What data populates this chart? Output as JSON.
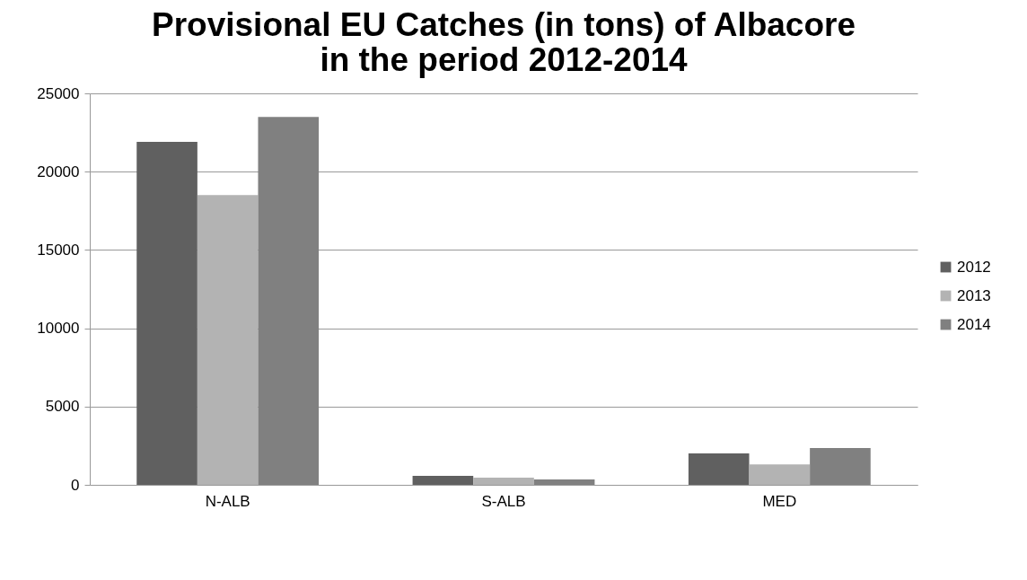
{
  "chart_data": {
    "type": "bar",
    "title": "Provisional EU  Catches (in tons) of Albacore\nin the period 2012-2014",
    "categories": [
      "N-ALB",
      "S-ALB",
      "MED"
    ],
    "series": [
      {
        "name": "2012",
        "color": "#606060",
        "values": [
          21900,
          570,
          2000
        ]
      },
      {
        "name": "2013",
        "color": "#b3b3b3",
        "values": [
          18500,
          460,
          1300
        ]
      },
      {
        "name": "2014",
        "color": "#808080",
        "values": [
          23500,
          340,
          2350
        ]
      }
    ],
    "ylim": [
      0,
      25000
    ],
    "yticks": [
      0,
      5000,
      10000,
      15000,
      20000,
      25000
    ],
    "grid": "y",
    "legend": "right"
  }
}
